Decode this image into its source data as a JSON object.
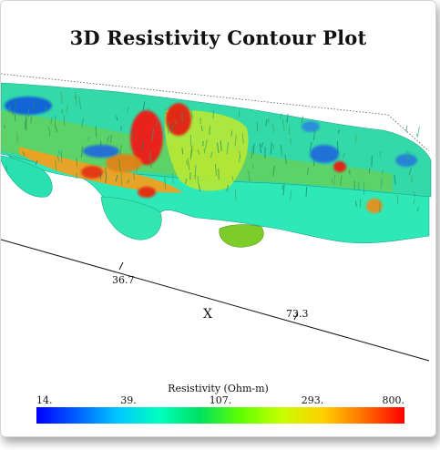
{
  "chart_data": {
    "type": "3d-contour",
    "title": "3D Resistivity Contour Plot",
    "axis": {
      "xlabel": "X",
      "xticks": [
        "36.7",
        "73.3"
      ]
    },
    "colorbar": {
      "title": "Resistivity (Ohm-m)",
      "tick_labels": [
        "14.",
        "39.",
        "107.",
        "293.",
        "800."
      ],
      "min": 14,
      "max": 800,
      "scale": "log",
      "colors": [
        "#0000ff",
        "#0060ff",
        "#00c8ff",
        "#00ffc0",
        "#00e060",
        "#60ff00",
        "#c8ff00",
        "#ffd000",
        "#ff7000",
        "#ff0000"
      ]
    },
    "palette": {
      "base_surface": "#2ee6b0",
      "mid_surface": "#5ad86a",
      "hot_spot": "#e8201a",
      "warm_spot": "#f0a010",
      "cold_spot": "#1050e0"
    }
  }
}
